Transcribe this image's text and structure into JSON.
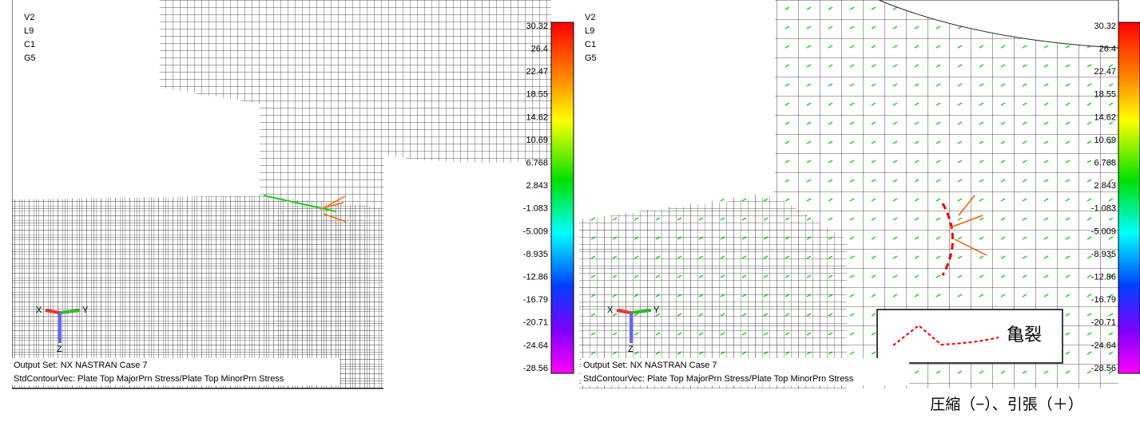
{
  "panels": [
    {
      "view_labels": [
        "V2",
        "L9",
        "C1",
        "G5"
      ],
      "legend": [
        "30.32",
        "26.4",
        "22.47",
        "18.55",
        "14.62",
        "10.69",
        "6.768",
        "2.843",
        "-1.083",
        "-5.009",
        "-8.935",
        "-12.86",
        "-16.79",
        "-20.71",
        "-24.64",
        "-28.56"
      ],
      "axes": {
        "x": "X",
        "y": "Y",
        "z": "Z"
      },
      "footer": [
        "Output Set: NX NASTRAN Case 7",
        "StdContourVec: Plate Top MajorPrn Stress/Plate Top MinorPrn Stress"
      ]
    },
    {
      "view_labels": [
        "V2",
        "L9",
        "C1",
        "G5"
      ],
      "legend": [
        "30.32",
        "26.4",
        "22.47",
        "18.55",
        "14.62",
        "10.69",
        "6.768",
        "2.843",
        "-1.083",
        "-5.009",
        "-8.935",
        "-12.86",
        "-16.79",
        "-20.71",
        "-24.64",
        "-28.56"
      ],
      "axes": {
        "x": "X",
        "y": "Y",
        "z": "Z"
      },
      "footer": [
        "Output Set: NX NASTRAN Case 7",
        "StdContourVec: Plate Top MajorPrn Stress/Plate Top MinorPrn Stress"
      ],
      "crack_label": "亀裂"
    }
  ],
  "caption": "圧縮（−）、引張（＋）"
}
